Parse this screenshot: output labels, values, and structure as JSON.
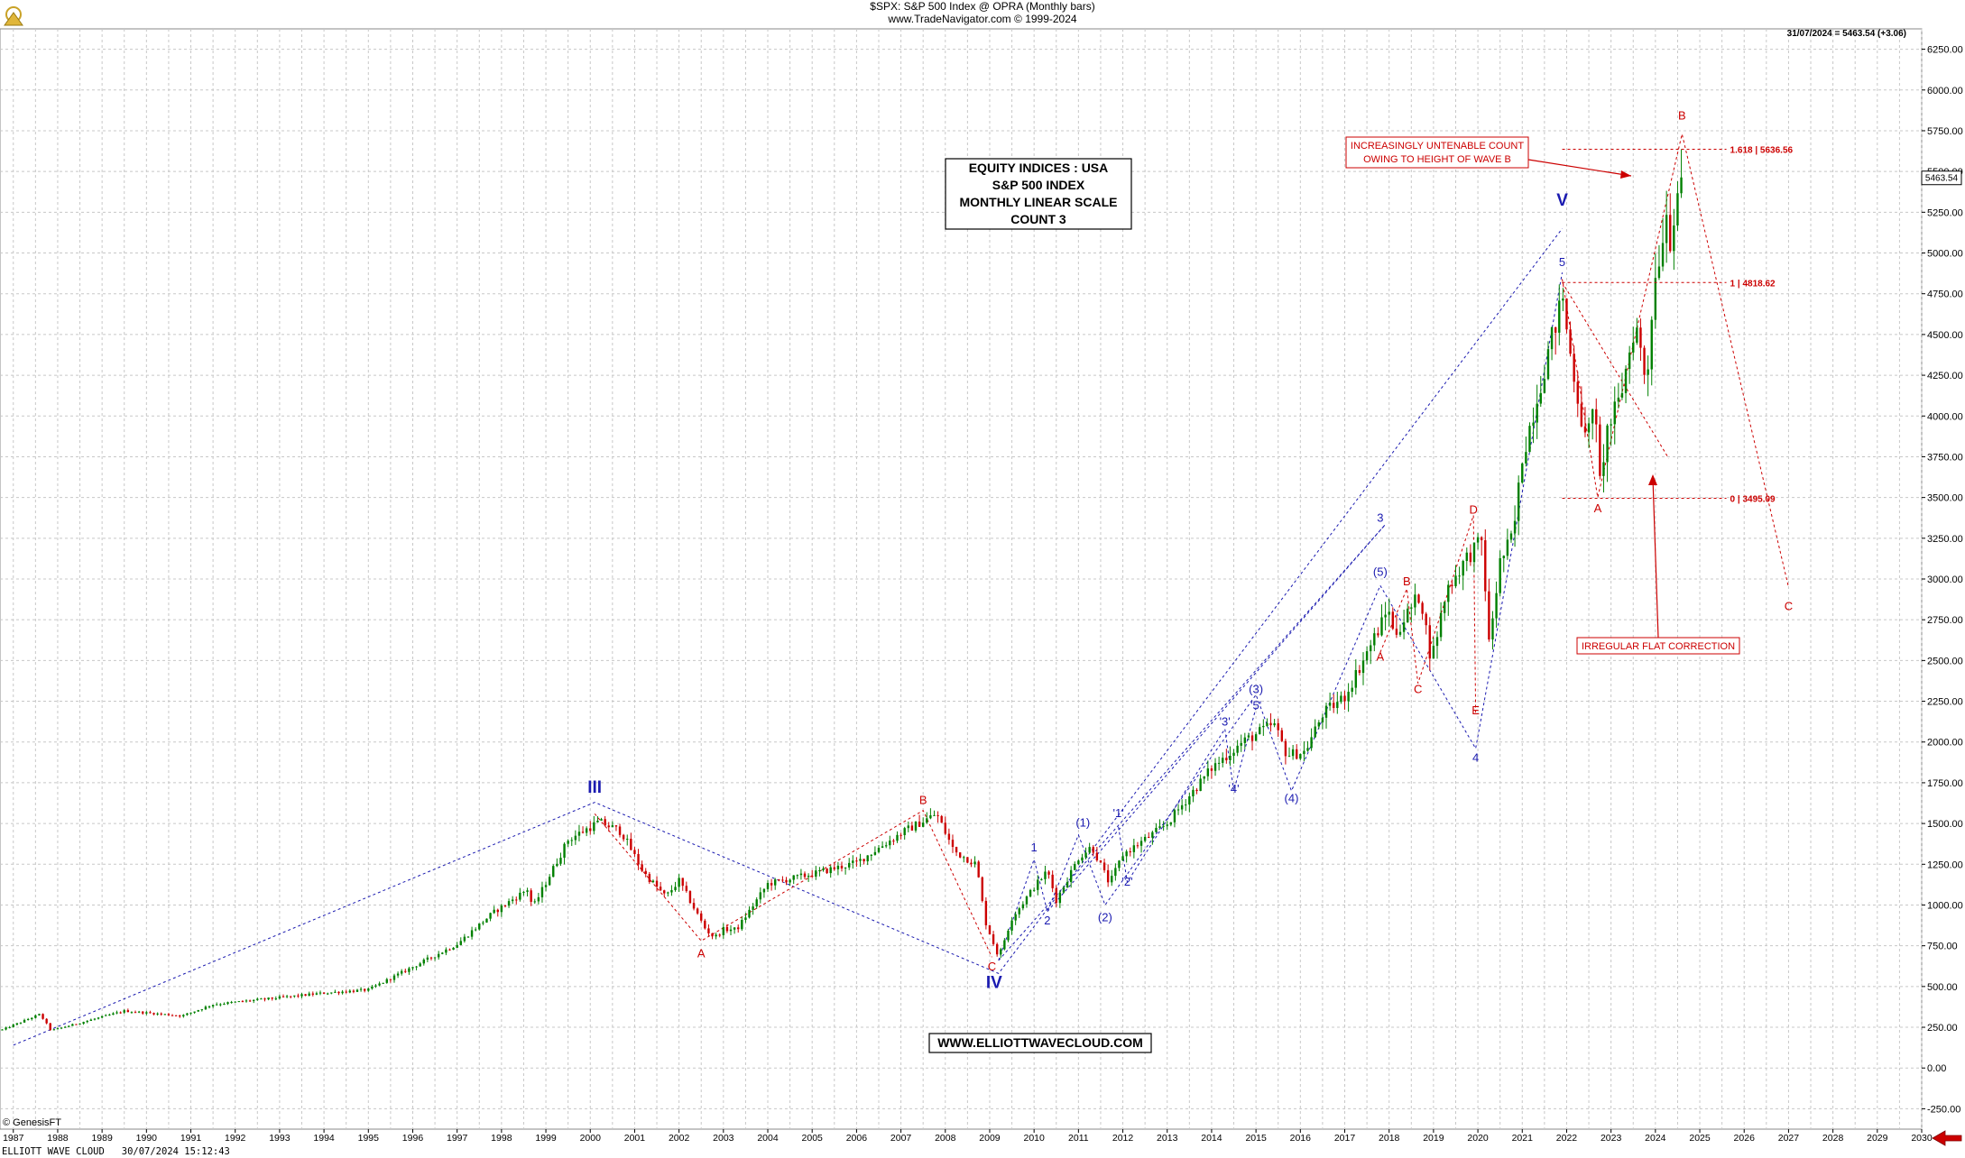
{
  "header": {
    "title_line": "$SPX:  S&P 500 Index @ OPRA  (Monthly bars)",
    "source_line": "www.TradeNavigator.com © 1999-2024",
    "last_value": "31/07/2024 = 5463.54 (+3.06)",
    "price_tag": "5463.54"
  },
  "footer": {
    "copyright": "© GenesisFT",
    "app_line": "ELLIOTT WAVE CLOUD   30/07/2024 15:12:43",
    "website": "WWW.ELLIOTTWAVECLOUD.COM"
  },
  "info_box": [
    "EQUITY INDICES : USA",
    "S&P 500 INDEX",
    "MONTHLY LINEAR SCALE",
    "COUNT 3"
  ],
  "annotations": {
    "untenable": [
      "INCREASINGLY UNTENABLE COUNT",
      "OWING TO HEIGHT OF WAVE B"
    ],
    "irregular": "IRREGULAR FLAT CORRECTION",
    "fib_levels": [
      {
        "label": "1.618 | 5636.56",
        "value": 5636.56
      },
      {
        "label": "1 | 4818.62",
        "value": 4818.62
      },
      {
        "label": "0 | 3495.09",
        "value": 3495.09
      }
    ]
  },
  "colors": {
    "up": "#008000",
    "down": "#cc0000",
    "blue": "#1a1ab0",
    "red": "#cc0000",
    "grid": "#c8c8c8"
  },
  "chart_data": {
    "type": "candlestick",
    "title": "$SPX:  S&P 500 Index @ OPRA  (Monthly bars)",
    "x_axis": {
      "range": [
        1986.7,
        2030.0
      ],
      "ticks": [
        "1987",
        "1988",
        "1989",
        "1990",
        "1991",
        "1992",
        "1993",
        "1994",
        "1995",
        "1996",
        "1997",
        "1998",
        "1999",
        "2000",
        "2001",
        "2002",
        "2003",
        "2004",
        "2005",
        "2006",
        "2007",
        "2008",
        "2009",
        "2010",
        "2011",
        "2012",
        "2013",
        "2014",
        "2015",
        "2016",
        "2017",
        "2018",
        "2019",
        "2020",
        "2021",
        "2022",
        "2023",
        "2024",
        "2025",
        "2026",
        "2027",
        "2028",
        "2029",
        "2030"
      ]
    },
    "y_axis": {
      "range": [
        -375,
        6375
      ],
      "ticks": [
        "-250.00",
        "0.00",
        "250.00",
        "500.00",
        "750.00",
        "1000.00",
        "1250.00",
        "1500.00",
        "1750.00",
        "2000.00",
        "2250.00",
        "2500.00",
        "2750.00",
        "3000.00",
        "3250.00",
        "3500.00",
        "3750.00",
        "4000.00",
        "4250.00",
        "4500.00",
        "4750.00",
        "5000.00",
        "5250.00",
        "5500.00",
        "5750.00",
        "6000.00",
        "6250.00"
      ],
      "position": "right"
    },
    "grid": true,
    "price_anchors": [
      [
        1986.75,
        235
      ],
      [
        1987.6,
        330
      ],
      [
        1987.85,
        230
      ],
      [
        1989.5,
        350
      ],
      [
        1990.8,
        320
      ],
      [
        1991.5,
        390
      ],
      [
        1994.0,
        460
      ],
      [
        1995.0,
        480
      ],
      [
        1996.0,
        620
      ],
      [
        1997.0,
        760
      ],
      [
        1997.8,
        950
      ],
      [
        1998.6,
        1100
      ],
      [
        1998.7,
        980
      ],
      [
        1999.5,
        1400
      ],
      [
        2000.2,
        1510
      ],
      [
        2000.7,
        1450
      ],
      [
        2001.2,
        1200
      ],
      [
        2001.7,
        1050
      ],
      [
        2002.0,
        1150
      ],
      [
        2002.6,
        850
      ],
      [
        2002.8,
        800
      ],
      [
        2003.0,
        850
      ],
      [
        2003.3,
        850
      ],
      [
        2004.0,
        1130
      ],
      [
        2005.0,
        1190
      ],
      [
        2006.0,
        1260
      ],
      [
        2007.0,
        1440
      ],
      [
        2007.8,
        1560
      ],
      [
        2008.2,
        1330
      ],
      [
        2008.7,
        1250
      ],
      [
        2008.9,
        900
      ],
      [
        2009.2,
        680
      ],
      [
        2009.5,
        920
      ],
      [
        2010.0,
        1110
      ],
      [
        2010.3,
        1210
      ],
      [
        2010.5,
        1030
      ],
      [
        2011.0,
        1290
      ],
      [
        2011.3,
        1360
      ],
      [
        2011.7,
        1130
      ],
      [
        2012.0,
        1310
      ],
      [
        2012.7,
        1440
      ],
      [
        2013.0,
        1500
      ],
      [
        2014.0,
        1840
      ],
      [
        2014.7,
        2000
      ],
      [
        2015.4,
        2110
      ],
      [
        2015.7,
        1920
      ],
      [
        2016.1,
        1940
      ],
      [
        2016.5,
        2170
      ],
      [
        2017.0,
        2280
      ],
      [
        2018.0,
        2820
      ],
      [
        2018.1,
        2650
      ],
      [
        2018.7,
        2910
      ],
      [
        2018.95,
        2500
      ],
      [
        2019.3,
        2940
      ],
      [
        2019.8,
        3150
      ],
      [
        2020.1,
        3230
      ],
      [
        2020.25,
        2600
      ],
      [
        2020.5,
        3100
      ],
      [
        2020.8,
        3270
      ],
      [
        2021.0,
        3750
      ],
      [
        2021.5,
        4300
      ],
      [
        2021.95,
        4770
      ],
      [
        2022.0,
        4520
      ],
      [
        2022.45,
        3800
      ],
      [
        2022.6,
        4130
      ],
      [
        2022.75,
        3590
      ],
      [
        2022.9,
        3900
      ],
      [
        2023.2,
        4100
      ],
      [
        2023.55,
        4580
      ],
      [
        2023.8,
        4190
      ],
      [
        2023.95,
        4770
      ],
      [
        2024.25,
        5250
      ],
      [
        2024.3,
        5030
      ],
      [
        2024.55,
        5480
      ]
    ],
    "waves": [
      {
        "label": "III",
        "x": 2000.1,
        "y": 1690,
        "color": "blue",
        "size": "big"
      },
      {
        "label": "IV",
        "x": 2009.1,
        "y": 490,
        "color": "blue",
        "size": "big"
      },
      {
        "label": "V",
        "x": 2021.9,
        "y": 5290,
        "color": "blue",
        "size": "big"
      },
      {
        "label": "1",
        "x": 2010.0,
        "y": 1330,
        "color": "blue",
        "size": "small"
      },
      {
        "label": "2",
        "x": 2010.3,
        "y": 880,
        "color": "blue",
        "size": "small"
      },
      {
        "label": "(1)",
        "x": 2011.1,
        "y": 1480,
        "color": "blue",
        "size": "small"
      },
      {
        "label": "(2)",
        "x": 2011.6,
        "y": 900,
        "color": "blue",
        "size": "small"
      },
      {
        "label": "'1'",
        "x": 2011.9,
        "y": 1540,
        "color": "blue",
        "size": "small"
      },
      {
        "label": "'2'",
        "x": 2012.1,
        "y": 1120,
        "color": "blue",
        "size": "small"
      },
      {
        "label": "'3'",
        "x": 2014.3,
        "y": 2100,
        "color": "blue",
        "size": "small"
      },
      {
        "label": "'4'",
        "x": 2014.5,
        "y": 1690,
        "color": "blue",
        "size": "small"
      },
      {
        "label": "'5'",
        "x": 2015.0,
        "y": 2200,
        "color": "blue",
        "size": "small"
      },
      {
        "label": "(3)",
        "x": 2015.0,
        "y": 2300,
        "color": "blue",
        "size": "small"
      },
      {
        "label": "(4)",
        "x": 2015.8,
        "y": 1630,
        "color": "blue",
        "size": "small"
      },
      {
        "label": "3",
        "x": 2017.8,
        "y": 3350,
        "color": "blue",
        "size": "small"
      },
      {
        "label": "(5)",
        "x": 2017.8,
        "y": 3020,
        "color": "blue",
        "size": "small"
      },
      {
        "label": "4",
        "x": 2019.95,
        "y": 1880,
        "color": "blue",
        "size": "small"
      },
      {
        "label": "5",
        "x": 2021.9,
        "y": 4920,
        "color": "blue",
        "size": "small"
      },
      {
        "label": "A",
        "x": 2002.5,
        "y": 680,
        "color": "red",
        "size": "small"
      },
      {
        "label": "B",
        "x": 2007.5,
        "y": 1620,
        "color": "red",
        "size": "small"
      },
      {
        "label": "C",
        "x": 2009.05,
        "y": 600,
        "color": "red",
        "size": "small"
      },
      {
        "label": "A",
        "x": 2017.8,
        "y": 2500,
        "color": "red",
        "size": "small"
      },
      {
        "label": "B",
        "x": 2018.4,
        "y": 2960,
        "color": "red",
        "size": "small"
      },
      {
        "label": "C",
        "x": 2018.65,
        "y": 2300,
        "color": "red",
        "size": "small"
      },
      {
        "label": "D",
        "x": 2019.9,
        "y": 3400,
        "color": "red",
        "size": "small"
      },
      {
        "label": "E",
        "x": 2019.95,
        "y": 2170,
        "color": "red",
        "size": "small"
      },
      {
        "label": "A",
        "x": 2022.7,
        "y": 3410,
        "color": "red",
        "size": "small"
      },
      {
        "label": "B",
        "x": 2024.6,
        "y": 5820,
        "color": "red",
        "size": "small"
      },
      {
        "label": "C",
        "x": 2027.0,
        "y": 2810,
        "color": "red",
        "size": "small"
      }
    ],
    "trendlines": [
      {
        "color": "blue",
        "points": [
          [
            1987.0,
            140
          ],
          [
            2000.1,
            1630
          ],
          [
            2009.2,
            580
          ],
          [
            2021.9,
            5150
          ]
        ]
      },
      {
        "color": "blue",
        "points": [
          [
            2009.2,
            660
          ],
          [
            2017.9,
            3330
          ]
        ]
      },
      {
        "color": "blue",
        "points": [
          [
            2010.3,
            960
          ],
          [
            2017.9,
            3330
          ]
        ]
      },
      {
        "color": "blue",
        "points": [
          [
            2009.2,
            660
          ],
          [
            2010.0,
            1280
          ],
          [
            2010.3,
            960
          ],
          [
            2011.0,
            1430
          ],
          [
            2011.6,
            1000
          ],
          [
            2015.0,
            2290
          ],
          [
            2015.8,
            1700
          ],
          [
            2017.8,
            2960
          ]
        ]
      },
      {
        "color": "blue",
        "points": [
          [
            2011.9,
            1480
          ],
          [
            2012.1,
            1140
          ],
          [
            2014.3,
            2080
          ],
          [
            2014.5,
            1700
          ],
          [
            2015.0,
            2210
          ]
        ]
      },
      {
        "color": "blue",
        "points": [
          [
            2017.8,
            2960
          ],
          [
            2019.95,
            1960
          ],
          [
            2021.9,
            4880
          ]
        ]
      },
      {
        "color": "red",
        "points": [
          [
            2000.1,
            1560
          ],
          [
            2002.5,
            780
          ],
          [
            2007.5,
            1580
          ],
          [
            2009.05,
            680
          ]
        ]
      },
      {
        "color": "red",
        "points": [
          [
            2017.8,
            2550
          ],
          [
            2018.4,
            2940
          ],
          [
            2018.65,
            2360
          ],
          [
            2019.9,
            3390
          ],
          [
            2019.95,
            2180
          ]
        ]
      },
      {
        "color": "red",
        "points": [
          [
            2021.9,
            4840
          ],
          [
            2022.7,
            3500
          ],
          [
            2024.6,
            5730
          ],
          [
            2027.0,
            2950
          ]
        ]
      },
      {
        "color": "red",
        "points": [
          [
            2021.9,
            4820
          ],
          [
            2024.3,
            3740
          ]
        ]
      }
    ],
    "fib_line_range": [
      2021.9,
      2025.6
    ]
  }
}
